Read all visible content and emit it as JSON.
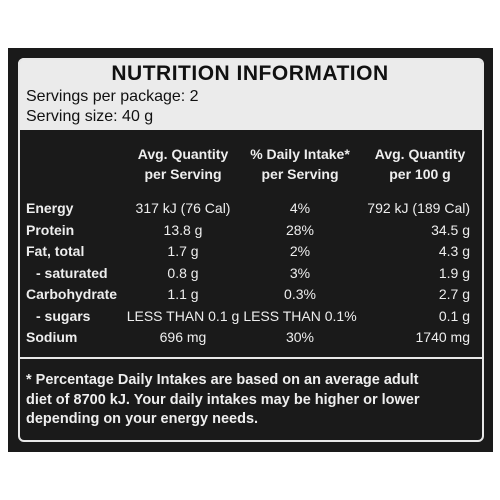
{
  "header": {
    "title": "NUTRITION INFORMATION",
    "servings": "Servings per package: 2",
    "serving_size": "Serving size: 40 g"
  },
  "table": {
    "columns": [
      [
        "Avg. Quantity",
        "per Serving"
      ],
      [
        "% Daily Intake*",
        "per Serving"
      ],
      [
        "Avg. Quantity",
        "per 100 g"
      ]
    ],
    "rows": [
      [
        "Energy",
        "317 kJ (76 Cal)",
        "4%",
        "792 kJ (189 Cal)"
      ],
      [
        "Protein",
        "13.8 g",
        "28%",
        "34.5 g"
      ],
      [
        "Fat, total",
        "1.7 g",
        "2%",
        "4.3 g"
      ],
      [
        "- saturated",
        "0.8 g",
        "3%",
        "1.9 g"
      ],
      [
        "Carbohydrate",
        "1.1 g",
        "0.3%",
        "2.7 g"
      ],
      [
        "- sugars",
        "LESS THAN 0.1 g",
        "LESS THAN 0.1%",
        "0.1 g"
      ],
      [
        "Sodium",
        "696 mg",
        "30%",
        "1740 mg"
      ]
    ]
  },
  "footnote": [
    "* Percentage Daily Intakes are based on an average adult",
    "diet of 8700 kJ. Your daily intakes may be higher or lower",
    "depending on your energy needs."
  ]
}
